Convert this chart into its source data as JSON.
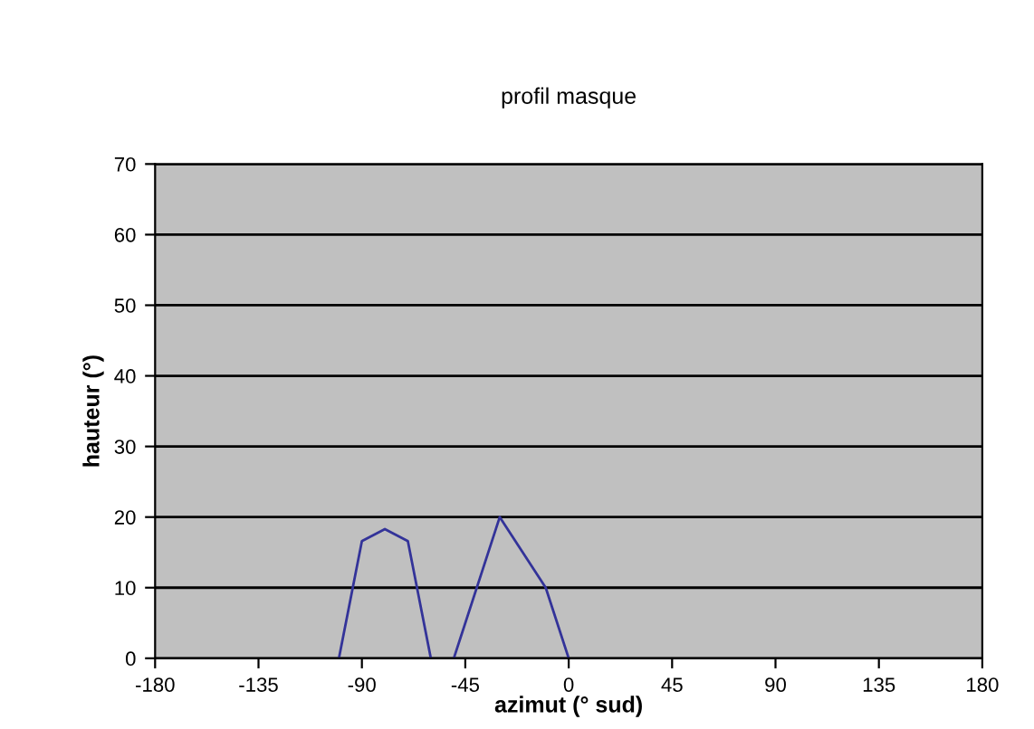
{
  "chart_data": {
    "type": "line",
    "title": "profil masque",
    "xlabel": "azimut (° sud)",
    "ylabel": "hauteur (°)",
    "x": [
      -100,
      -90,
      -80,
      -70,
      -60,
      -55,
      -50,
      -30,
      -10,
      0
    ],
    "series": [
      {
        "color": "#333399",
        "values": [
          0,
          16.6,
          18.3,
          16.6,
          0,
          null,
          0,
          20,
          10,
          0
        ]
      }
    ],
    "xlim": [
      -180,
      180
    ],
    "xticks": [
      -180,
      -135,
      -90,
      -45,
      0,
      45,
      90,
      135,
      180
    ],
    "ylim": [
      0,
      70
    ],
    "yticks": [
      0,
      10,
      20,
      30,
      40,
      50,
      60,
      70
    ],
    "grid": "y",
    "marker": "none",
    "line_style": "solid",
    "legend": false
  }
}
